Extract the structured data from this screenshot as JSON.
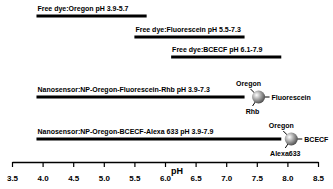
{
  "chart_data": {
    "type": "bar",
    "orientation": "horizontal",
    "categories": [
      "Free dye:Oregon pH 3.9-5.7",
      "Free dye:Fluorescein pH 5.5-7.3",
      "Free dye:BCECF pH 6.1-7.9",
      "Nanosensor:NP-Oregon-Fluorescein-Rhb pH 3.9-7.3",
      "Nanosensor:NP-Oregon-BCECF-Alexa 633 pH 3.9-7.9"
    ],
    "values": [
      [
        3.9,
        5.7
      ],
      [
        5.5,
        7.3
      ],
      [
        6.1,
        7.9
      ],
      [
        3.9,
        7.3
      ],
      [
        3.9,
        7.9
      ]
    ],
    "color": "#000000",
    "xlabel": "pH",
    "xlim": [
      3.5,
      8.5
    ],
    "xticks": [
      3.5,
      {
        "value": 4,
        "label": "4.0"
      },
      4.5,
      {
        "value": 5,
        "label": "5.0"
      },
      5.5,
      {
        "value": 6,
        "label": "6.0"
      },
      6.5,
      {
        "value": 7,
        "label": "7.0"
      },
      7.5,
      {
        "value": 8,
        "label": "8.0"
      },
      8.5
    ],
    "grid": false,
    "annotations": [
      {
        "labels": [
          "Oregon",
          "Fluorescein",
          "Rhb"
        ]
      },
      {
        "labels": [
          "Oregon",
          "BCECF",
          "Alexa633"
        ]
      }
    ]
  }
}
